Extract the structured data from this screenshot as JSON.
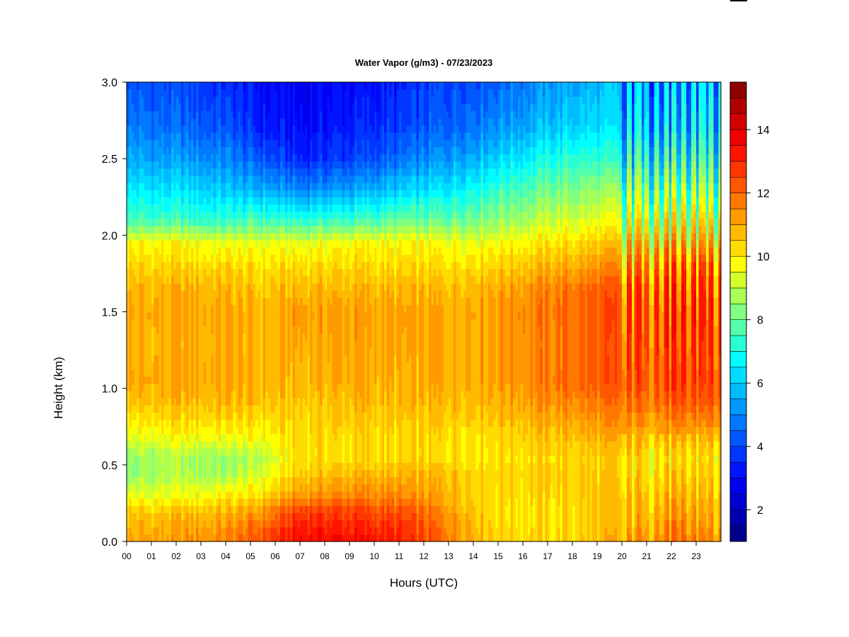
{
  "chart_data": {
    "type": "heatmap",
    "title": "Water Vapor (g/m3) - 07/23/2023",
    "xlabel": "Hours (UTC)",
    "ylabel": "Height (km)",
    "x_ticks": [
      "00",
      "01",
      "02",
      "03",
      "04",
      "05",
      "06",
      "07",
      "08",
      "09",
      "10",
      "11",
      "12",
      "13",
      "14",
      "15",
      "16",
      "17",
      "18",
      "19",
      "20",
      "21",
      "22",
      "23"
    ],
    "xlim": [
      0,
      24
    ],
    "y_ticks": [
      "0.0",
      "0.5",
      "1.0",
      "1.5",
      "2.0",
      "2.5",
      "3.0"
    ],
    "ylim": [
      0.0,
      3.0
    ],
    "colorbar": {
      "ticks": [
        "2",
        "4",
        "6",
        "8",
        "10",
        "12",
        "14"
      ],
      "range": [
        1,
        15.5
      ],
      "step": 0.5,
      "colors": [
        "#00008F",
        "#0000B0",
        "#0000D2",
        "#0000F3",
        "#0014FF",
        "#0036FF",
        "#0057FF",
        "#0078FF",
        "#009AFF",
        "#00BBFF",
        "#00DCFF",
        "#00FEFF",
        "#2AFFD4",
        "#55FFAA",
        "#80FF80",
        "#AAFF55",
        "#D4FF2A",
        "#FFFF00",
        "#FFDC00",
        "#FFBB00",
        "#FF9A00",
        "#FF7800",
        "#FF5700",
        "#FF3600",
        "#FF1400",
        "#F30000",
        "#D20000",
        "#B00000",
        "#8F0000"
      ]
    },
    "profile_heights_km": [
      0.0,
      0.1,
      0.2,
      0.3,
      0.45,
      0.55,
      0.7,
      0.9,
      1.05,
      1.3,
      1.5,
      1.65,
      1.8,
      1.95,
      2.1,
      2.3,
      2.5,
      2.7,
      3.0
    ],
    "profiles": [
      {
        "hour": 0,
        "values": [
          11.0,
          10.8,
          10.5,
          9.5,
          8.3,
          8.5,
          9.5,
          10.5,
          11.0,
          10.8,
          11.0,
          10.8,
          10.3,
          9.8,
          7.5,
          6.5,
          5.5,
          4.8,
          4.2
        ]
      },
      {
        "hour": 2,
        "values": [
          11.2,
          11.0,
          10.5,
          9.5,
          8.8,
          8.8,
          9.8,
          10.7,
          11.0,
          10.9,
          11.0,
          10.9,
          10.3,
          9.8,
          7.5,
          6.3,
          5.3,
          4.5,
          4.0
        ]
      },
      {
        "hour": 4,
        "values": [
          11.6,
          11.2,
          10.8,
          9.9,
          8.6,
          8.5,
          9.8,
          10.8,
          11.0,
          10.9,
          11.0,
          10.8,
          10.3,
          9.5,
          7.3,
          6.0,
          5.0,
          4.2,
          3.6
        ]
      },
      {
        "hour": 5.5,
        "values": [
          12.5,
          12.0,
          11.2,
          10.2,
          9.3,
          8.9,
          9.8,
          10.6,
          10.8,
          10.8,
          10.8,
          10.5,
          10.1,
          9.5,
          7.5,
          5.5,
          4.2,
          3.3,
          3.0
        ]
      },
      {
        "hour": 7,
        "values": [
          13.6,
          13.2,
          12.7,
          11.3,
          10.5,
          10.2,
          10.3,
          10.5,
          10.8,
          11.0,
          11.2,
          10.8,
          10.3,
          9.5,
          7.3,
          5.0,
          3.5,
          3.0,
          2.8
        ]
      },
      {
        "hour": 9.5,
        "values": [
          13.5,
          13.0,
          12.5,
          11.6,
          10.8,
          10.2,
          10.3,
          10.8,
          11.0,
          11.1,
          11.2,
          10.8,
          10.3,
          9.8,
          7.5,
          5.5,
          4.0,
          3.5,
          3.0
        ]
      },
      {
        "hour": 11,
        "values": [
          13.0,
          12.8,
          12.3,
          11.4,
          10.7,
          10.2,
          10.2,
          10.6,
          10.8,
          10.9,
          11.0,
          10.7,
          10.2,
          9.7,
          7.8,
          6.0,
          4.5,
          3.8,
          3.3
        ]
      },
      {
        "hour": 13,
        "values": [
          11.8,
          11.6,
          11.3,
          10.9,
          10.7,
          10.2,
          10.3,
          10.8,
          11.0,
          11.0,
          11.0,
          10.8,
          10.2,
          9.7,
          8.0,
          6.5,
          5.3,
          4.5,
          4.0
        ]
      },
      {
        "hour": 15,
        "values": [
          10.5,
          10.3,
          10.2,
          10.3,
          10.4,
          10.2,
          10.4,
          11.0,
          11.2,
          11.2,
          11.3,
          11.1,
          10.5,
          9.8,
          8.5,
          7.5,
          6.2,
          5.2,
          4.5
        ]
      },
      {
        "hour": 18,
        "values": [
          10.2,
          10.2,
          10.2,
          10.3,
          10.4,
          10.3,
          10.8,
          11.5,
          12.0,
          11.9,
          12.0,
          11.8,
          11.0,
          10.2,
          9.3,
          8.3,
          7.3,
          6.2,
          5.5
        ]
      },
      {
        "hour": 20,
        "values": [
          11.0,
          10.8,
          10.7,
          10.6,
          10.4,
          10.4,
          11.0,
          11.8,
          12.3,
          12.3,
          12.4,
          12.3,
          11.5,
          10.6,
          9.5,
          8.5,
          7.2,
          6.3,
          5.8
        ]
      },
      {
        "hour": 22,
        "values": [
          12.0,
          11.7,
          11.3,
          11.0,
          10.6,
          10.3,
          11.0,
          12.2,
          12.8,
          12.8,
          13.0,
          12.8,
          12.3,
          11.2,
          10.0,
          8.8,
          7.5,
          6.5,
          6.0
        ]
      },
      {
        "hour": 24,
        "values": [
          11.5,
          11.2,
          11.0,
          10.8,
          10.5,
          10.3,
          11.0,
          12.2,
          12.6,
          12.6,
          12.9,
          12.6,
          12.2,
          11.0,
          9.8,
          8.5,
          7.5,
          6.8,
          6.3
        ]
      }
    ]
  }
}
